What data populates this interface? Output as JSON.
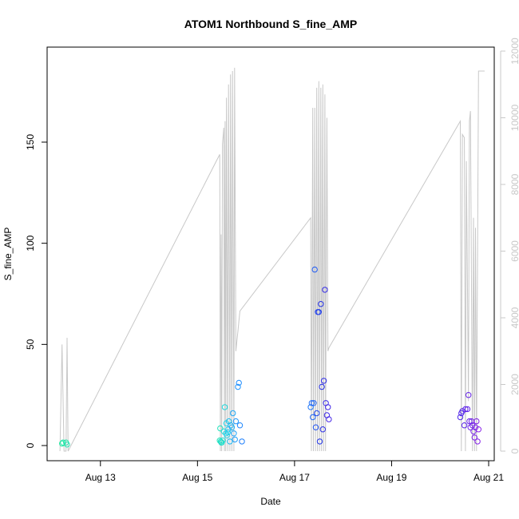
{
  "chart_data": {
    "type": "scatter",
    "title": "ATOM1 Northbound S_fine_AMP",
    "xlabel": "Date",
    "ylabel": "S_fine_AMP",
    "xlim": [
      "2023-08-12T00:00",
      "2023-08-21T00:00"
    ],
    "ylim": [
      0,
      190
    ],
    "y2lim": [
      0,
      12000
    ],
    "x_ticks": [
      {
        "value": "2023-08-13T00:00",
        "label": "Aug 13"
      },
      {
        "value": "2023-08-15T00:00",
        "label": "Aug 15"
      },
      {
        "value": "2023-08-17T00:00",
        "label": "Aug 17"
      },
      {
        "value": "2023-08-19T00:00",
        "label": "Aug 19"
      },
      {
        "value": "2023-08-21T00:00",
        "label": "Aug 21"
      }
    ],
    "y_ticks": [
      0,
      50,
      100,
      150
    ],
    "y2_ticks": [
      0,
      2000,
      4000,
      6000,
      8000,
      10000,
      12000
    ],
    "grid": false,
    "legend": "none",
    "series": [
      {
        "kind": "points",
        "axis": "left",
        "color_gradient": [
          "#22e8a0",
          "#22d8e8",
          "#1e90ff",
          "#2233e8",
          "#5a22e8",
          "#8a22e8"
        ],
        "x": [
          "2023-08-12T05:00",
          "2023-08-12T05:30",
          "2023-08-12T07:00",
          "2023-08-12T07:30",
          "2023-08-15T11:00",
          "2023-08-15T11:15",
          "2023-08-15T11:30",
          "2023-08-15T11:45",
          "2023-08-15T12:00",
          "2023-08-15T12:30",
          "2023-08-15T13:00",
          "2023-08-15T13:30",
          "2023-08-15T14:00",
          "2023-08-15T14:15",
          "2023-08-15T14:30",
          "2023-08-15T15:00",
          "2023-08-15T15:15",
          "2023-08-15T15:30",
          "2023-08-15T16:00",
          "2023-08-15T16:30",
          "2023-08-15T17:00",
          "2023-08-15T17:30",
          "2023-08-15T18:00",
          "2023-08-15T18:30",
          "2023-08-15T19:00",
          "2023-08-15T20:00",
          "2023-08-15T20:30",
          "2023-08-15T21:00",
          "2023-08-15T22:00",
          "2023-08-17T08:00",
          "2023-08-17T08:30",
          "2023-08-17T09:00",
          "2023-08-17T09:30",
          "2023-08-17T10:00",
          "2023-08-17T10:30",
          "2023-08-17T11:00",
          "2023-08-17T11:30",
          "2023-08-17T12:00",
          "2023-08-17T12:30",
          "2023-08-17T13:00",
          "2023-08-17T13:30",
          "2023-08-17T14:00",
          "2023-08-17T14:30",
          "2023-08-17T15:00",
          "2023-08-17T15:30",
          "2023-08-17T16:00",
          "2023-08-17T16:30",
          "2023-08-17T17:00",
          "2023-08-20T10:00",
          "2023-08-20T10:30",
          "2023-08-20T11:00",
          "2023-08-20T12:00",
          "2023-08-20T12:30",
          "2023-08-20T13:30",
          "2023-08-20T14:00",
          "2023-08-20T14:30",
          "2023-08-20T15:00",
          "2023-08-20T15:30",
          "2023-08-20T16:00",
          "2023-08-20T16:30",
          "2023-08-20T17:00",
          "2023-08-20T17:30",
          "2023-08-20T18:00",
          "2023-08-20T18:30",
          "2023-08-20T19:00"
        ],
        "y": [
          1,
          1.5,
          1.5,
          0.5,
          2.5,
          8.5,
          2,
          1.5,
          1.5,
          2.5,
          7,
          19,
          6,
          11,
          5,
          6.5,
          8,
          12,
          2,
          10,
          9,
          16,
          6,
          3,
          12,
          29,
          31,
          10,
          2,
          19,
          21,
          14,
          21,
          87,
          9,
          16,
          66,
          66,
          2,
          70,
          29,
          8,
          32,
          77,
          21,
          15,
          19,
          13,
          14,
          16,
          17,
          10,
          18,
          18,
          25,
          12,
          9,
          12,
          10,
          7,
          4,
          9,
          12,
          2,
          8
        ]
      },
      {
        "kind": "line",
        "axis": "right",
        "color": "#c8c8c8",
        "x": [
          "2023-08-12T04:00",
          "2023-08-12T05:00",
          "2023-08-12T06:00",
          "2023-08-12T07:00",
          "2023-08-12T07:30",
          "2023-08-12T08:00",
          "2023-08-15T11:00",
          "2023-08-15T11:20",
          "2023-08-15T11:40",
          "2023-08-15T12:00",
          "2023-08-15T12:20",
          "2023-08-15T13:00",
          "2023-08-15T13:20",
          "2023-08-15T13:40",
          "2023-08-15T14:00",
          "2023-08-15T14:20",
          "2023-08-15T15:00",
          "2023-08-15T15:20",
          "2023-08-15T16:00",
          "2023-08-15T16:20",
          "2023-08-15T17:00",
          "2023-08-15T17:20",
          "2023-08-15T18:00",
          "2023-08-15T18:20",
          "2023-08-15T19:00",
          "2023-08-15T19:30",
          "2023-08-15T20:00",
          "2023-08-15T20:30",
          "2023-08-15T21:00",
          "2023-08-17T08:00",
          "2023-08-17T08:20",
          "2023-08-17T09:00",
          "2023-08-17T09:20",
          "2023-08-17T10:00",
          "2023-08-17T10:20",
          "2023-08-17T11:00",
          "2023-08-17T11:20",
          "2023-08-17T12:00",
          "2023-08-17T12:20",
          "2023-08-17T13:00",
          "2023-08-17T13:20",
          "2023-08-17T14:00",
          "2023-08-17T14:20",
          "2023-08-17T15:00",
          "2023-08-17T15:20",
          "2023-08-17T16:00",
          "2023-08-17T16:30",
          "2023-08-17T17:00",
          "2023-08-20T10:00",
          "2023-08-20T10:30",
          "2023-08-20T11:00",
          "2023-08-20T12:00",
          "2023-08-20T12:30",
          "2023-08-20T13:00",
          "2023-08-20T14:00",
          "2023-08-20T14:30",
          "2023-08-20T15:00",
          "2023-08-20T16:00",
          "2023-08-20T16:30",
          "2023-08-20T17:00",
          "2023-08-20T17:30",
          "2023-08-20T18:00",
          "2023-08-20T19:00",
          "2023-08-20T20:00",
          "2023-08-20T21:00",
          "2023-08-20T22:00"
        ],
        "y": [
          0,
          3200,
          0,
          0,
          3400,
          0,
          8900,
          0,
          6500,
          0,
          9200,
          9700,
          0,
          9900,
          0,
          10600,
          0,
          11000,
          0,
          11300,
          0,
          11400,
          0,
          11500,
          3000,
          3300,
          3600,
          3900,
          4200,
          7000,
          0,
          10300,
          0,
          10300,
          0,
          10900,
          0,
          11100,
          0,
          10900,
          0,
          11000,
          0,
          10700,
          0,
          10000,
          3000,
          3100,
          9900,
          0,
          9500,
          9400,
          0,
          8700,
          1500,
          9900,
          10200,
          0,
          7000,
          0,
          6700,
          0,
          11400,
          11400,
          11400,
          11400
        ]
      }
    ]
  }
}
